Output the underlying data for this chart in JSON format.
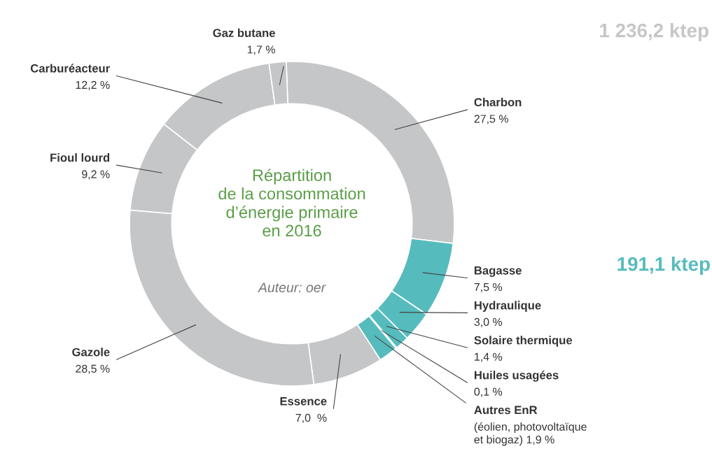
{
  "chart_data": {
    "type": "donut",
    "title": "Répartition\nde la consommation\nd’énergie primaire\nen 2016",
    "categories": [
      "Charbon",
      "Bagasse",
      "Hydraulique",
      "Solaire thermique",
      "Huiles usagées",
      "Autres EnR",
      "Essence",
      "Gazole",
      "Fioul lourd",
      "Carburéacteur",
      "Gaz butane"
    ],
    "values": [
      27.5,
      7.5,
      3.0,
      1.4,
      0.1,
      1.9,
      7.0,
      28.5,
      9.2,
      12.2,
      1.7
    ],
    "value_labels": [
      "27,5 %",
      "7,5 %",
      "3,0 %",
      "1,4 %",
      "0,1 %",
      "(éolien, photovoltaïque\net biogaz) 1,9 %",
      "7,0  %",
      "28,5 %",
      "9,2 %",
      "12,2 %",
      "1,7 %"
    ],
    "colors": [
      "#c5c6c7",
      "#56bbbd",
      "#56bbbd",
      "#56bbbd",
      "#7a3a2c",
      "#56bbbd",
      "#c5c6c7",
      "#c5c6c7",
      "#c5c6c7",
      "#c5c6c7",
      "#c5c6c7"
    ],
    "annotations": [
      "Auteur: oer",
      "1 236,2 ktep",
      "191,1 ktep"
    ],
    "legend": false
  }
}
